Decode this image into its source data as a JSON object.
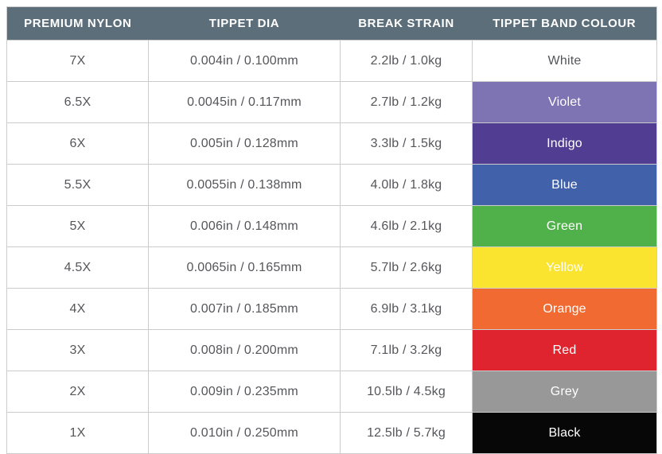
{
  "chart_data": {
    "type": "table",
    "title": "Premium nylon tippet specification table",
    "columns": [
      "PREMIUM NYLON",
      "TIPPET DIA",
      "BREAK STRAIN",
      "TIPPET BAND COLOUR"
    ],
    "rows": [
      {
        "premium_nylon": "7X",
        "tippet_dia": "0.004in / 0.100mm",
        "break_strain": "2.2lb / 1.0kg",
        "band_colour_label": "White",
        "band_colour_hex": "#ffffff",
        "band_text_hex": "#55565a"
      },
      {
        "premium_nylon": "6.5X",
        "tippet_dia": "0.0045in / 0.117mm",
        "break_strain": "2.7lb / 1.2kg",
        "band_colour_label": "Violet",
        "band_colour_hex": "#7e74b3",
        "band_text_hex": "#ffffff"
      },
      {
        "premium_nylon": "6X",
        "tippet_dia": "0.005in / 0.128mm",
        "break_strain": "3.3lb / 1.5kg",
        "band_colour_label": "Indigo",
        "band_colour_hex": "#513e92",
        "band_text_hex": "#ffffff"
      },
      {
        "premium_nylon": "5.5X",
        "tippet_dia": "0.0055in / 0.138mm",
        "break_strain": "4.0lb / 1.8kg",
        "band_colour_label": "Blue",
        "band_colour_hex": "#4261ab",
        "band_text_hex": "#ffffff"
      },
      {
        "premium_nylon": "5X",
        "tippet_dia": "0.006in / 0.148mm",
        "break_strain": "4.6lb / 2.1kg",
        "band_colour_label": "Green",
        "band_colour_hex": "#50b14b",
        "band_text_hex": "#ffffff"
      },
      {
        "premium_nylon": "4.5X",
        "tippet_dia": "0.0065in / 0.165mm",
        "break_strain": "5.7lb / 2.6kg",
        "band_colour_label": "Yellow",
        "band_colour_hex": "#fbe430",
        "band_text_hex": "#ffffff"
      },
      {
        "premium_nylon": "4X",
        "tippet_dia": "0.007in / 0.185mm",
        "break_strain": "6.9lb / 3.1kg",
        "band_colour_label": "Orange",
        "band_colour_hex": "#f06a31",
        "band_text_hex": "#ffffff"
      },
      {
        "premium_nylon": "3X",
        "tippet_dia": "0.008in / 0.200mm",
        "break_strain": "7.1lb / 3.2kg",
        "band_colour_label": "Red",
        "band_colour_hex": "#e0242f",
        "band_text_hex": "#ffffff"
      },
      {
        "premium_nylon": "2X",
        "tippet_dia": "0.009in / 0.235mm",
        "break_strain": "10.5lb / 4.5kg",
        "band_colour_label": "Grey",
        "band_colour_hex": "#989898",
        "band_text_hex": "#ffffff"
      },
      {
        "premium_nylon": "1X",
        "tippet_dia": "0.010in / 0.250mm",
        "break_strain": "12.5lb / 5.7kg",
        "band_colour_label": "Black",
        "band_colour_hex": "#070707",
        "band_text_hex": "#ffffff"
      }
    ],
    "layout": {
      "legend": "none",
      "grid": "cell-borders"
    }
  },
  "style": {
    "header_bg": "#5c6e79",
    "header_text": "#ffffff",
    "body_text": "#55565a",
    "border": "#cccccc",
    "background": "#ffffff"
  }
}
